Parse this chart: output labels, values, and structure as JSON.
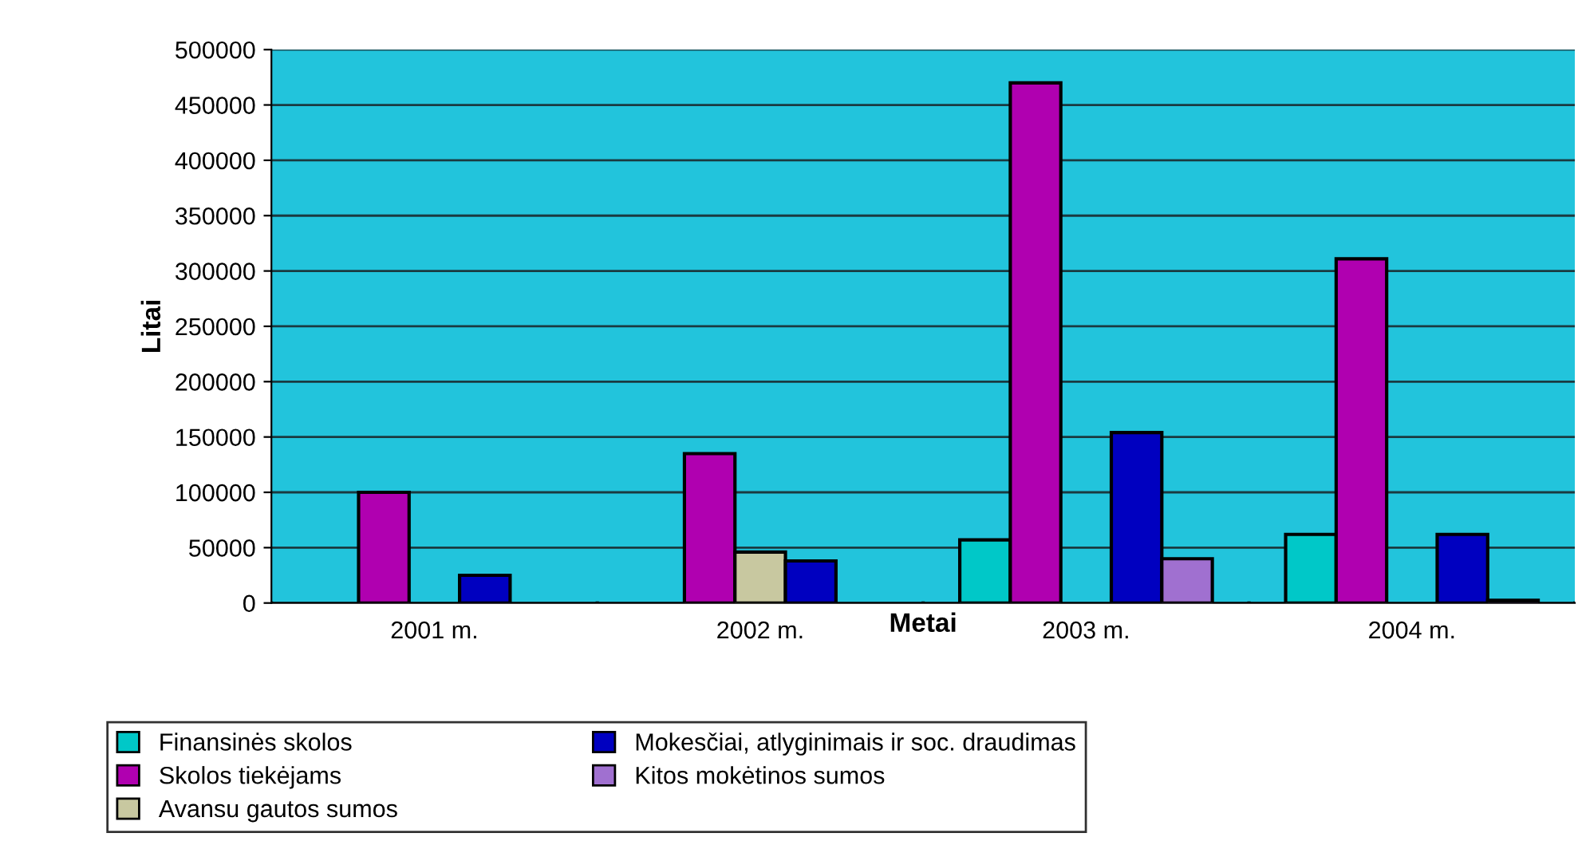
{
  "chart_data": {
    "type": "bar",
    "xlabel": "Metai",
    "ylabel": "Litai",
    "categories": [
      "2001 m.",
      "2002 m.",
      "2003 m.",
      "2004 m."
    ],
    "series": [
      {
        "name": "Finansinės skolos",
        "color": "#00c8c8",
        "values": [
          null,
          null,
          57000,
          62000
        ]
      },
      {
        "name": "Skolos tiekėjams",
        "color": "#b000b0",
        "values": [
          100000,
          135000,
          470000,
          311000
        ]
      },
      {
        "name": "Avansu gautos sumos",
        "color": "#c8c8a0",
        "values": [
          null,
          46000,
          null,
          null
        ]
      },
      {
        "name": "Mokesčiai, atlyginimais ir soc. draudimas",
        "color": "#0000c0",
        "values": [
          25000,
          38000,
          154000,
          62000
        ]
      },
      {
        "name": "Kitos mokėtinos sumos",
        "color": "#a070d0",
        "values": [
          null,
          null,
          40000,
          2500
        ]
      }
    ],
    "ylim": [
      0,
      500000
    ],
    "yticks": [
      0,
      50000,
      100000,
      150000,
      200000,
      250000,
      300000,
      350000,
      400000,
      450000,
      500000
    ],
    "grid": "y",
    "legend": "bottom"
  }
}
